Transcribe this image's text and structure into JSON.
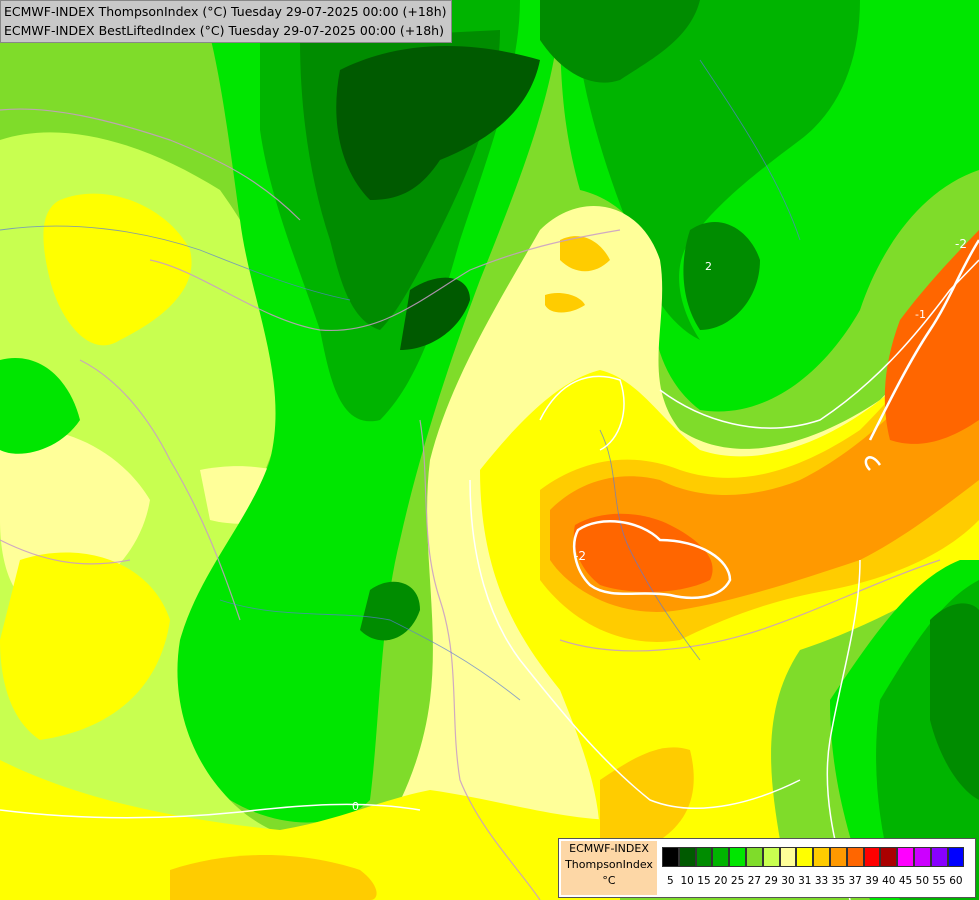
{
  "header": {
    "line1": "ECMWF-INDEX ThompsonIndex (°C) Tuesday 29-07-2025 00:00 (+18h)",
    "line2": "ECMWF-INDEX BestLiftedIndex (°C) Tuesday 29-07-2025 00:00 (+18h)"
  },
  "legend": {
    "line1": "ECMWF-INDEX",
    "line2": "ThompsonIndex",
    "line3": "°C",
    "colors": [
      "#000000",
      "#000000",
      "#000000",
      "#000000",
      "#005a00",
      "#008c00",
      "#00b400",
      "#00e600",
      "#7fdc2a",
      "#c8ff50",
      "#ffff99",
      "#ffff00",
      "#ffcc00",
      "#ff9900",
      "#ff6600",
      "#ff0000",
      "#aa0000",
      "#ff00ff",
      "#cc00ff",
      "#8800ff",
      "#0000ff"
    ],
    "ticks": [
      "5",
      "10",
      "15",
      "20",
      "25",
      "27",
      "29",
      "30",
      "31",
      "33",
      "35",
      "37",
      "39",
      "40",
      "45",
      "50",
      "55",
      "60"
    ]
  },
  "contours": {
    "label_a": "-2",
    "label_b": "-1",
    "label_c": "0",
    "label_d": "2"
  }
}
